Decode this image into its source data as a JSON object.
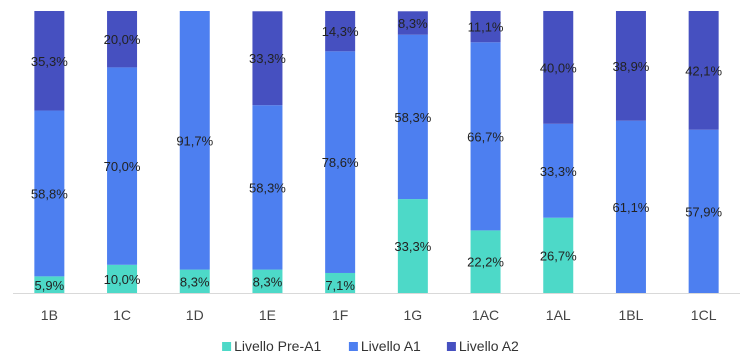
{
  "chart_data": {
    "type": "bar",
    "stacked": true,
    "orientation": "vertical",
    "categories": [
      "1B",
      "1C",
      "1D",
      "1E",
      "1F",
      "1G",
      "1AC",
      "1AL",
      "1BL",
      "1CL"
    ],
    "series": [
      {
        "name": "Livello Pre-A1",
        "color": "#4dd9c8",
        "values": [
          5.9,
          10.0,
          8.3,
          8.3,
          7.1,
          33.3,
          22.2,
          26.7,
          0,
          0
        ],
        "labels": [
          "5,9%",
          "10,0%",
          "8,3%",
          "8,3%",
          "7,1%",
          "33,3%",
          "22,2%",
          "26,7%",
          "",
          ""
        ]
      },
      {
        "name": "Livello A1",
        "color": "#4d7ff0",
        "values": [
          58.8,
          70.0,
          91.7,
          58.3,
          78.6,
          58.3,
          66.7,
          33.3,
          61.1,
          57.9
        ],
        "labels": [
          "58,8%",
          "70,0%",
          "91,7%",
          "58,3%",
          "78,6%",
          "58,3%",
          "66,7%",
          "33,3%",
          "61,1%",
          "57,9%"
        ]
      },
      {
        "name": "Livello A2",
        "color": "#4650c0",
        "values": [
          35.3,
          20.0,
          0,
          33.3,
          14.3,
          8.3,
          11.1,
          40.0,
          38.9,
          42.1
        ],
        "labels": [
          "35,3%",
          "20,0%",
          "",
          "33,3%",
          "14,3%",
          "8,3%",
          "11,1%",
          "40,0%",
          "38,9%",
          "42,1%"
        ]
      }
    ],
    "ylim": [
      0,
      100
    ],
    "title": "",
    "xlabel": "",
    "ylabel": "",
    "grid": false,
    "legend_position": "bottom"
  }
}
